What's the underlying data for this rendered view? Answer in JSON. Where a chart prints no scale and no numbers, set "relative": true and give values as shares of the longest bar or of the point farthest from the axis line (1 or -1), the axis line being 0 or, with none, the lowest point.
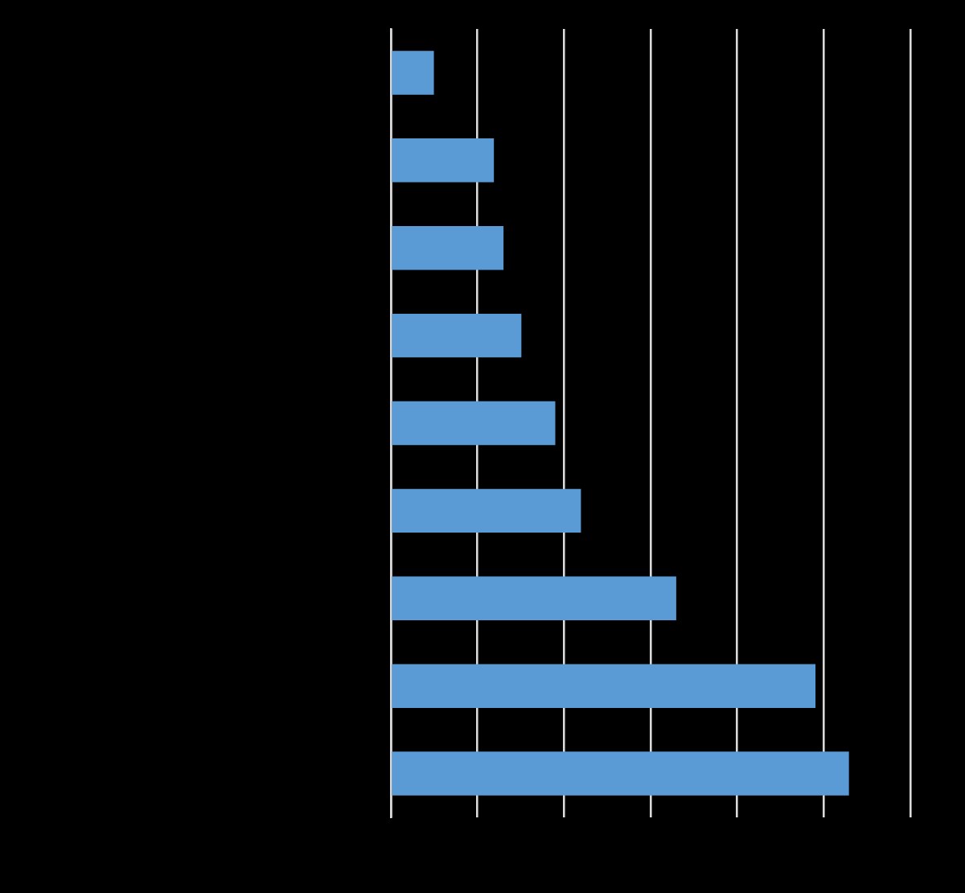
{
  "chart_data": {
    "type": "bar",
    "orientation": "horizontal",
    "relative": true,
    "categories": [
      null,
      null,
      null,
      null,
      null,
      null,
      null,
      null,
      null
    ],
    "values": [
      0.094,
      0.225,
      0.246,
      0.285,
      0.359,
      0.415,
      0.623,
      0.927,
      1
    ],
    "color": "#5b9bd5",
    "grid": "x"
  }
}
